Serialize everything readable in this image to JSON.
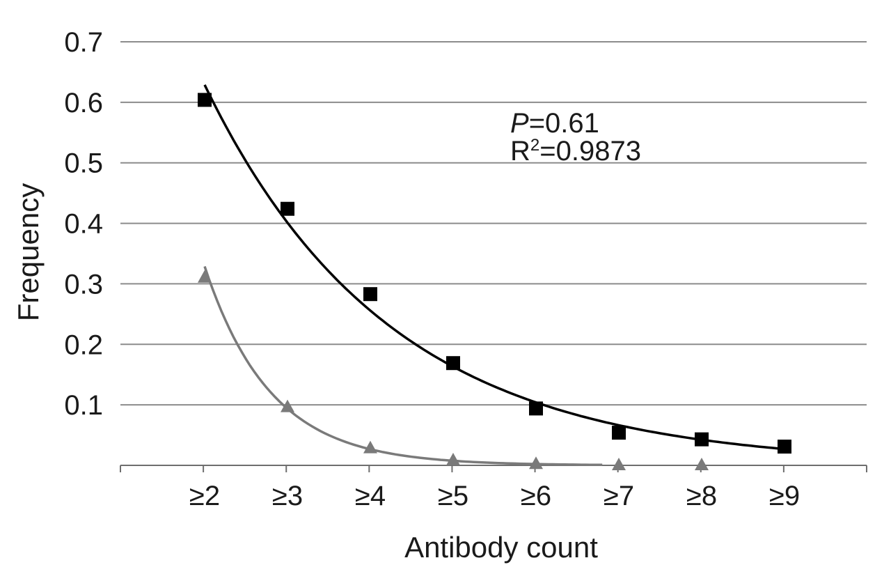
{
  "chart_data": {
    "type": "scatter",
    "title": "",
    "xlabel": "Antibody count",
    "ylabel": "Frequency",
    "categories": [
      "≥2",
      "≥3",
      "≥4",
      "≥5",
      "≥6",
      "≥7",
      "≥8",
      "≥9"
    ],
    "ylim": [
      0,
      0.7
    ],
    "yticks": [
      "0.1",
      "0.2",
      "0.3",
      "0.4",
      "0.5",
      "0.6",
      "0.7"
    ],
    "grid": true,
    "series": [
      {
        "marker": "square",
        "color": "#000000",
        "values": [
          0.604,
          0.424,
          0.283,
          0.169,
          0.094,
          0.054,
          0.043,
          0.031
        ],
        "trendline": "exponential"
      },
      {
        "marker": "triangle",
        "color": "#7a7a7a",
        "values": [
          0.31,
          0.096,
          0.028,
          0.008,
          0.002,
          0.0,
          0.0
        ],
        "trendline": "exponential"
      }
    ],
    "annotation": {
      "p_label": "P",
      "p_value": "=0.61",
      "r2_label": "R",
      "r2_sup": "2",
      "r2_value": "=0.9873"
    }
  }
}
